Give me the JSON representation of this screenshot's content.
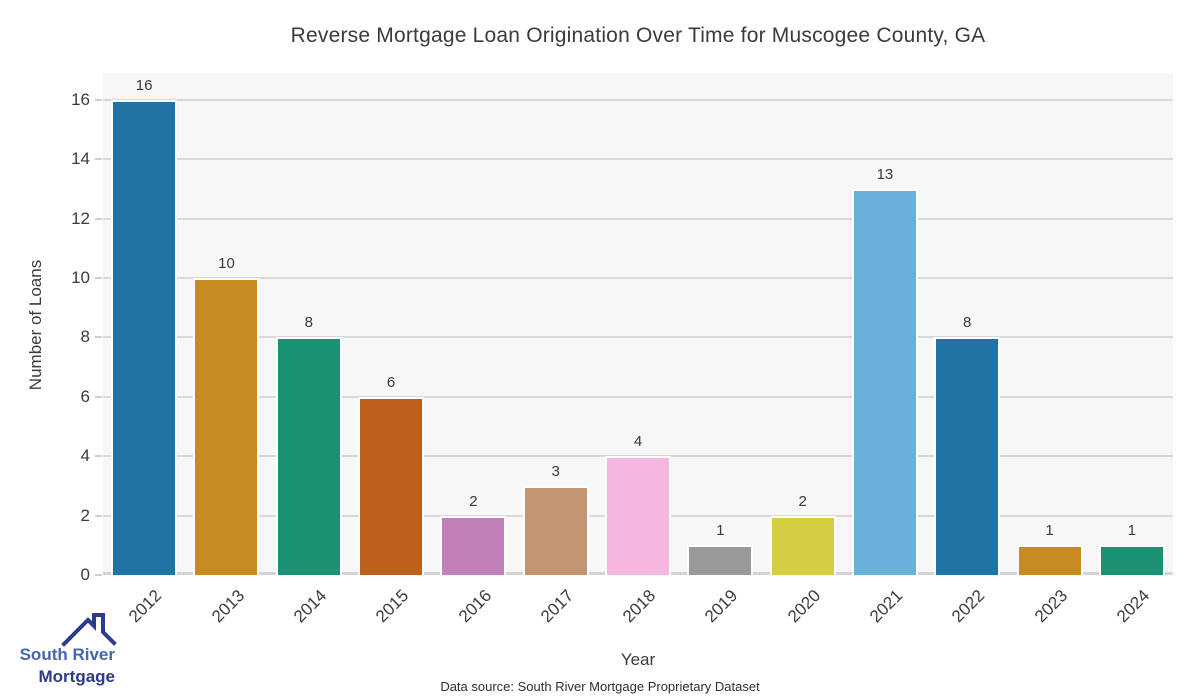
{
  "chart_data": {
    "type": "bar",
    "title": "Reverse Mortgage Loan Origination Over Time for Muscogee County, GA",
    "xlabel": "Year",
    "ylabel": "Number of Loans",
    "categories": [
      "2012",
      "2013",
      "2014",
      "2015",
      "2016",
      "2017",
      "2018",
      "2019",
      "2020",
      "2021",
      "2022",
      "2023",
      "2024"
    ],
    "values": [
      16,
      10,
      8,
      6,
      2,
      3,
      4,
      1,
      2,
      13,
      8,
      1,
      1
    ],
    "bar_colors": [
      "#2173a3",
      "#c88b21",
      "#1b9274",
      "#bd5f1d",
      "#c180ba",
      "#c29672",
      "#f3b7e0",
      "#9a9a9a",
      "#d5cd42",
      "#69b1d9",
      "#2173a3",
      "#c88b21",
      "#1b9274"
    ],
    "value_labels": [
      16,
      10,
      8,
      6,
      2,
      3,
      4,
      1,
      2,
      13,
      8,
      1,
      1
    ],
    "yticks": [
      0,
      2,
      4,
      6,
      8,
      10,
      12,
      14,
      16
    ],
    "ylim": [
      0,
      16.9
    ],
    "grid": "horizontal",
    "legend": "none",
    "panel_background": "#f7f7f7",
    "gridline_color": "#d8d8da"
  },
  "footer": {
    "source_note": "Data source: South River Mortgage Proprietary Dataset"
  },
  "logo": {
    "icon": "house-roof-icon",
    "line1": "South River",
    "line2": "Mortgage",
    "line1_color": "#4565b0",
    "line2_color": "#2e3a8c"
  }
}
